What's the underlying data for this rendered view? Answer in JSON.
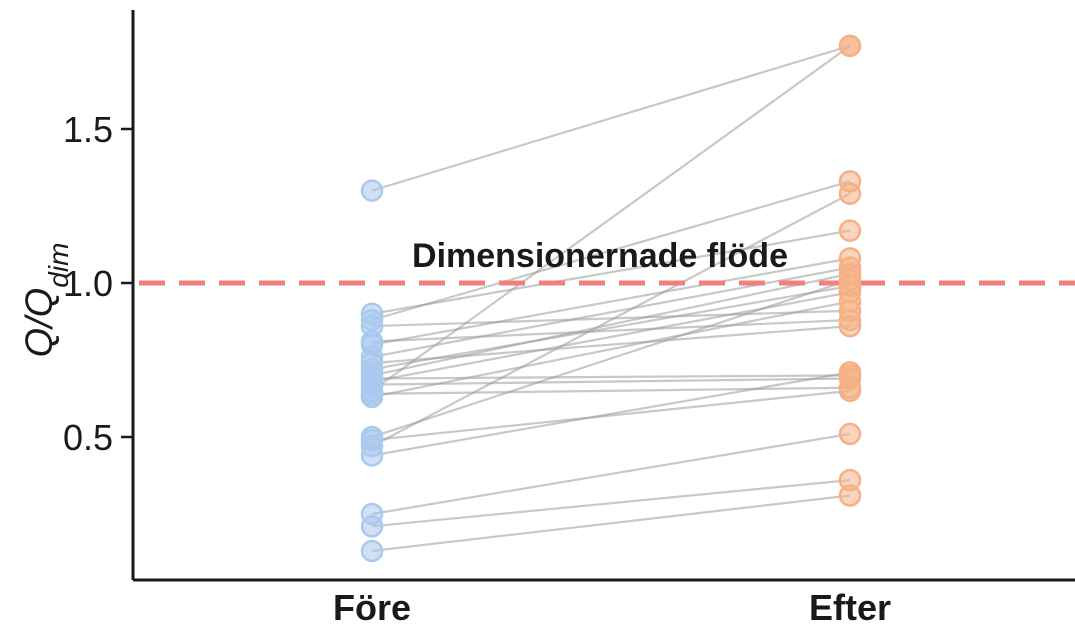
{
  "chart_data": {
    "type": "scatter",
    "subtype": "paired-dot-plot",
    "categories": [
      "Före",
      "Efter"
    ],
    "ylabel": "Q/Q",
    "ylabel_subscript": "dim",
    "ylim": [
      0.03,
      1.88
    ],
    "yticks": [
      0.5,
      1.0,
      1.5
    ],
    "ytick_labels": [
      "0.5",
      "1.0",
      "1.5"
    ],
    "grid": false,
    "reference_line": {
      "y": 1.0,
      "label": "Dimensionernade flöde",
      "color": "#f08080",
      "style": "dashed"
    },
    "colors": {
      "fore": "#a9c9ee",
      "efter": "#f5b085",
      "line": "#9a9a9a"
    },
    "pairs": [
      {
        "fore": 1.3,
        "efter": 1.77
      },
      {
        "fore": 0.65,
        "efter": 1.77
      },
      {
        "fore": 0.88,
        "efter": 1.33
      },
      {
        "fore": 0.47,
        "efter": 1.29
      },
      {
        "fore": 0.9,
        "efter": 1.17
      },
      {
        "fore": 0.8,
        "efter": 1.08
      },
      {
        "fore": 0.76,
        "efter": 1.05
      },
      {
        "fore": 0.7,
        "efter": 1.03
      },
      {
        "fore": 0.5,
        "efter": 1.01
      },
      {
        "fore": 0.72,
        "efter": 0.99
      },
      {
        "fore": 0.68,
        "efter": 0.97
      },
      {
        "fore": 0.63,
        "efter": 0.94
      },
      {
        "fore": 0.86,
        "efter": 0.91
      },
      {
        "fore": 0.81,
        "efter": 0.88
      },
      {
        "fore": 0.74,
        "efter": 0.86
      },
      {
        "fore": 0.44,
        "efter": 0.71
      },
      {
        "fore": 0.69,
        "efter": 0.7
      },
      {
        "fore": 0.67,
        "efter": 0.69
      },
      {
        "fore": 0.64,
        "efter": 0.66
      },
      {
        "fore": 0.49,
        "efter": 0.65
      },
      {
        "fore": 0.25,
        "efter": 0.51
      },
      {
        "fore": 0.21,
        "efter": 0.36
      },
      {
        "fore": 0.13,
        "efter": 0.31
      }
    ]
  }
}
